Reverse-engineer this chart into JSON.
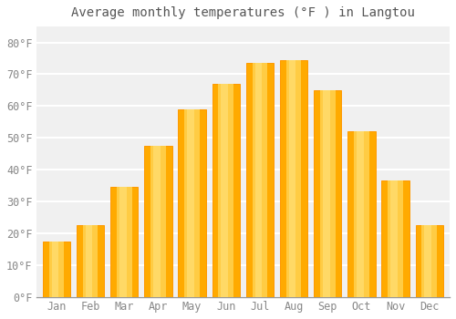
{
  "title": "Average monthly temperatures (°F ) in Langtou",
  "months": [
    "Jan",
    "Feb",
    "Mar",
    "Apr",
    "May",
    "Jun",
    "Jul",
    "Aug",
    "Sep",
    "Oct",
    "Nov",
    "Dec"
  ],
  "values": [
    17.5,
    22.5,
    34.5,
    47.5,
    59.0,
    67.0,
    73.5,
    74.5,
    65.0,
    52.0,
    36.5,
    22.5
  ],
  "bar_color_main": "#FFAA00",
  "bar_color_light": "#FFCC44",
  "bar_color_dark": "#FF9900",
  "bar_edge_color": "#CC7700",
  "background_color": "#FFFFFF",
  "plot_bg_color": "#F0F0F0",
  "grid_color": "#FFFFFF",
  "text_color": "#888888",
  "title_color": "#555555",
  "ylim": [
    0,
    85
  ],
  "yticks": [
    0,
    10,
    20,
    30,
    40,
    50,
    60,
    70,
    80
  ],
  "ytick_labels": [
    "0°F",
    "10°F",
    "20°F",
    "30°F",
    "40°F",
    "50°F",
    "60°F",
    "70°F",
    "80°F"
  ],
  "title_fontsize": 10,
  "tick_fontsize": 8.5,
  "bar_width": 0.82
}
